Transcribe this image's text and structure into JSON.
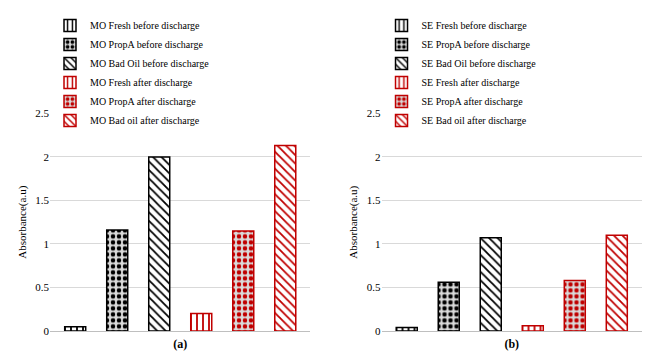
{
  "chart_data": [
    {
      "type": "bar",
      "x_label": "(a)",
      "y_label": "Absorbance(a.u)",
      "categories": [
        null,
        null,
        null,
        null,
        null,
        null
      ],
      "series": [
        {
          "name": "MO Fresh before discharge",
          "color": "#000000",
          "values": [
            0.05,
            null,
            null,
            null,
            null,
            null
          ]
        },
        {
          "name": "MO PropA before discharge",
          "color": "#000000",
          "values": [
            null,
            1.16,
            null,
            null,
            null,
            null
          ]
        },
        {
          "name": "MO Bad Oil before discharge",
          "color": "#000000",
          "values": [
            null,
            null,
            2.0,
            null,
            null,
            null
          ]
        },
        {
          "name": "MO Fresh after discharge",
          "color": "#c00000",
          "values": [
            null,
            null,
            null,
            0.2,
            null,
            null
          ]
        },
        {
          "name": "MO PropA after discharge",
          "color": "#c00000",
          "values": [
            null,
            null,
            null,
            null,
            1.15,
            null
          ]
        },
        {
          "name": "MO Bad oil after discharge",
          "color": "#c00000",
          "values": [
            null,
            null,
            null,
            null,
            null,
            2.13
          ]
        }
      ],
      "ylim": [
        0,
        2.5
      ],
      "yticks": [
        0,
        0.5,
        1,
        1.5,
        2,
        2.5
      ],
      "grid": true,
      "legend": "top",
      "tick_labels": "y"
    },
    {
      "type": "bar",
      "x_label": "(b)",
      "y_label": "Absorbance(a.u)",
      "categories": [
        null,
        null,
        null,
        null,
        null,
        null
      ],
      "series": [
        {
          "name": "SE Fresh before discharge",
          "color": "#000000",
          "values": [
            0.04,
            null,
            null,
            null,
            null,
            null
          ]
        },
        {
          "name": "SE PropA before discharge",
          "color": "#000000",
          "values": [
            null,
            0.56,
            null,
            null,
            null,
            null
          ]
        },
        {
          "name": "SE Bad Oil before discharge",
          "color": "#000000",
          "values": [
            null,
            null,
            1.07,
            null,
            null,
            null
          ]
        },
        {
          "name": "SE Fresh after discharge",
          "color": "#c00000",
          "values": [
            null,
            null,
            null,
            0.06,
            null,
            null
          ]
        },
        {
          "name": "SE PropA after discharge",
          "color": "#c00000",
          "values": [
            null,
            null,
            null,
            null,
            0.58,
            null
          ]
        },
        {
          "name": "SE Bad oil after discharge",
          "color": "#c00000",
          "values": [
            null,
            null,
            null,
            null,
            null,
            1.1
          ]
        }
      ],
      "ylim": [
        0,
        2.5
      ],
      "yticks": [
        0,
        0.5,
        1,
        1.5,
        2,
        2.5
      ],
      "grid": true,
      "legend": "top",
      "tick_labels": "y"
    }
  ]
}
